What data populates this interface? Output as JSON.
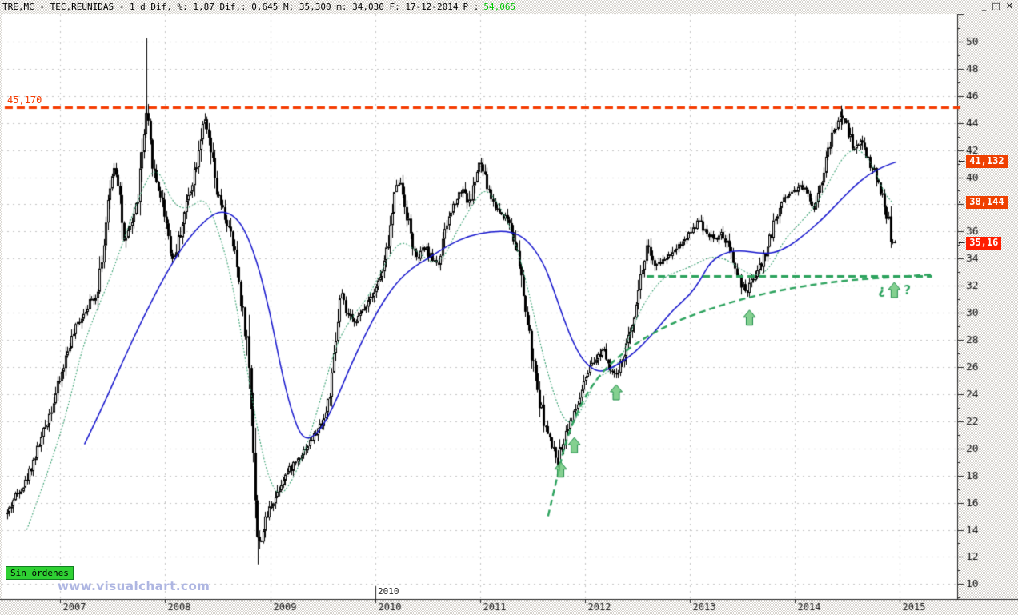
{
  "titlebar": {
    "title": "TRE,MC - TEC,REUNIDAS -  1 d Dif, %: 1,87 Dif,: 0,645 M: 35,300 m: 34,030 F: 17-12-2014",
    "last_label": "P :",
    "last_value": "54,065",
    "buttons": {
      "minimize": "_",
      "maximize": "□",
      "close": "✕"
    }
  },
  "overlays": {
    "resistance_label": "45,170",
    "no_orders_badge": "Sin órdenes",
    "watermark": "www.visualchart.com",
    "inner_year_label": "2010",
    "question_left": "¿",
    "question_right": "?",
    "marker_arrow": "←"
  },
  "price_markers": [
    {
      "label": "41,132",
      "value": 41.132,
      "color": "#ef4000"
    },
    {
      "label": "38,144",
      "value": 38.144,
      "color": "#ef4000"
    },
    {
      "label": "35,16",
      "value": 35.16,
      "color": "#ff1e00"
    }
  ],
  "colors": {
    "grid": "#c4c4c4",
    "axis": "#222222",
    "candle": "#000000",
    "resistance": "#f53b00",
    "ma_fast": "#3aa273",
    "ma_slow": "#1515cd",
    "trend": "#2da35e",
    "arrow_fill": "#6ec87d",
    "arrow_stroke": "#1f8c49"
  },
  "chart_data": {
    "type": "candlestick",
    "title": "TRE,MC - TEC,REUNIDAS - 1 d (daily candles)",
    "x_axis": {
      "min_year": 2006.44,
      "max_year": 2015.55,
      "tick_years": [
        2007,
        2008,
        2009,
        2010,
        2011,
        2012,
        2013,
        2014,
        2015
      ],
      "tick_labels": [
        "2007",
        "2008",
        "2009",
        "2010",
        "2011",
        "2012",
        "2013",
        "2014",
        "2015"
      ],
      "inner_label_year": 2010
    },
    "y_axis": {
      "min": 8.9,
      "max": 52.0,
      "gridline_step": 2,
      "minor_tick_step": 1,
      "tick_values": [
        50,
        48,
        46,
        44,
        42,
        40,
        38,
        36,
        34,
        32,
        30,
        28,
        26,
        24,
        22,
        20,
        18,
        16,
        14,
        12,
        10
      ],
      "tick_labels": [
        "50",
        "48",
        "46",
        "44",
        "42",
        "40",
        "38",
        "36",
        "34",
        "32",
        "30",
        "28",
        "26",
        "24",
        "22",
        "20",
        "18",
        "16",
        "14",
        "12",
        "10"
      ]
    },
    "resistance": {
      "value": 45.17,
      "label": "45,170",
      "span_years": [
        2006.47,
        2015.55
      ]
    },
    "support": {
      "value": 32.72,
      "span_years": [
        2012.59,
        2015.31
      ]
    },
    "last_price": 35.16,
    "price_path": [
      [
        2006.49,
        15.2
      ],
      [
        2006.57,
        16.6
      ],
      [
        2006.66,
        17.4
      ],
      [
        2006.75,
        19.3
      ],
      [
        2006.83,
        21.0
      ],
      [
        2006.92,
        23.2
      ],
      [
        2007.0,
        25.3
      ],
      [
        2007.08,
        27.6
      ],
      [
        2007.17,
        29.3
      ],
      [
        2007.26,
        30.6
      ],
      [
        2007.34,
        31.4
      ],
      [
        2007.42,
        35.5
      ],
      [
        2007.5,
        41.0
      ],
      [
        2007.55,
        40.0
      ],
      [
        2007.61,
        34.8
      ],
      [
        2007.67,
        36.5
      ],
      [
        2007.73,
        38.0
      ],
      [
        2007.79,
        42.5
      ],
      [
        2007.82,
        44.5
      ],
      [
        2007.86,
        42.0
      ],
      [
        2007.9,
        40.0
      ],
      [
        2007.96,
        38.5
      ],
      [
        2008.0,
        37.1
      ],
      [
        2008.07,
        33.8
      ],
      [
        2008.13,
        35.5
      ],
      [
        2008.2,
        38.0
      ],
      [
        2008.28,
        40.5
      ],
      [
        2008.36,
        44.3
      ],
      [
        2008.42,
        42.4
      ],
      [
        2008.49,
        38.8
      ],
      [
        2008.56,
        37.2
      ],
      [
        2008.62,
        35.8
      ],
      [
        2008.68,
        33.6
      ],
      [
        2008.73,
        30.5
      ],
      [
        2008.78,
        27.7
      ],
      [
        2008.83,
        21.8
      ],
      [
        2008.88,
        12.5
      ],
      [
        2008.93,
        14.0
      ],
      [
        2009.0,
        15.8
      ],
      [
        2009.05,
        16.5
      ],
      [
        2009.12,
        17.8
      ],
      [
        2009.2,
        18.6
      ],
      [
        2009.28,
        19.5
      ],
      [
        2009.36,
        20.3
      ],
      [
        2009.44,
        21.2
      ],
      [
        2009.52,
        22.4
      ],
      [
        2009.59,
        25.0
      ],
      [
        2009.67,
        31.5
      ],
      [
        2009.72,
        30.0
      ],
      [
        2009.78,
        29.4
      ],
      [
        2009.86,
        29.8
      ],
      [
        2009.93,
        31.0
      ],
      [
        2010.0,
        31.8
      ],
      [
        2010.08,
        33.2
      ],
      [
        2010.15,
        36.5
      ],
      [
        2010.21,
        40.2
      ],
      [
        2010.27,
        38.5
      ],
      [
        2010.33,
        36.0
      ],
      [
        2010.39,
        33.8
      ],
      [
        2010.47,
        34.8
      ],
      [
        2010.54,
        34.0
      ],
      [
        2010.61,
        33.7
      ],
      [
        2010.69,
        36.8
      ],
      [
        2010.76,
        38.3
      ],
      [
        2010.84,
        39.3
      ],
      [
        2010.89,
        37.9
      ],
      [
        2010.96,
        40.0
      ],
      [
        2011.0,
        41.2
      ],
      [
        2011.06,
        39.5
      ],
      [
        2011.13,
        38.0
      ],
      [
        2011.2,
        37.3
      ],
      [
        2011.27,
        36.9
      ],
      [
        2011.34,
        35.0
      ],
      [
        2011.41,
        31.5
      ],
      [
        2011.48,
        27.5
      ],
      [
        2011.53,
        25.0
      ],
      [
        2011.58,
        23.0
      ],
      [
        2011.64,
        21.0
      ],
      [
        2011.69,
        20.0
      ],
      [
        2011.74,
        19.2
      ],
      [
        2011.79,
        20.5
      ],
      [
        2011.84,
        21.8
      ],
      [
        2011.9,
        22.5
      ],
      [
        2011.96,
        24.0
      ],
      [
        2012.03,
        25.5
      ],
      [
        2012.1,
        26.5
      ],
      [
        2012.18,
        27.5
      ],
      [
        2012.24,
        26.0
      ],
      [
        2012.3,
        25.2
      ],
      [
        2012.37,
        26.8
      ],
      [
        2012.43,
        28.5
      ],
      [
        2012.49,
        31.0
      ],
      [
        2012.55,
        33.5
      ],
      [
        2012.6,
        35.3
      ],
      [
        2012.66,
        33.2
      ],
      [
        2012.72,
        33.8
      ],
      [
        2012.79,
        34.2
      ],
      [
        2012.86,
        34.8
      ],
      [
        2012.93,
        35.2
      ],
      [
        2013.0,
        36.0
      ],
      [
        2013.08,
        36.8
      ],
      [
        2013.16,
        36.0
      ],
      [
        2013.23,
        35.4
      ],
      [
        2013.31,
        35.8
      ],
      [
        2013.38,
        34.5
      ],
      [
        2013.45,
        33.0
      ],
      [
        2013.53,
        31.3
      ],
      [
        2013.6,
        32.5
      ],
      [
        2013.68,
        33.6
      ],
      [
        2013.75,
        35.2
      ],
      [
        2013.82,
        37.0
      ],
      [
        2013.89,
        38.5
      ],
      [
        2013.97,
        38.9
      ],
      [
        2014.04,
        39.4
      ],
      [
        2014.11,
        39.0
      ],
      [
        2014.18,
        37.8
      ],
      [
        2014.26,
        40.0
      ],
      [
        2014.33,
        42.3
      ],
      [
        2014.4,
        44.0
      ],
      [
        2014.44,
        44.6
      ],
      [
        2014.51,
        43.3
      ],
      [
        2014.57,
        42.0
      ],
      [
        2014.63,
        42.8
      ],
      [
        2014.69,
        41.5
      ],
      [
        2014.75,
        40.5
      ],
      [
        2014.81,
        39.3
      ],
      [
        2014.86,
        38.0
      ],
      [
        2014.9,
        36.3
      ],
      [
        2014.93,
        34.9
      ],
      [
        2014.955,
        35.16
      ]
    ],
    "extreme_wicks": [
      [
        2007.82,
        50.25,
        44.0
      ],
      [
        2008.88,
        11.45,
        13.5
      ],
      [
        2014.44,
        45.3,
        43.5
      ]
    ],
    "ma_fast": {
      "name": "fast moving average (green, dotted)",
      "points": [
        [
          2006.68,
          14.0
        ],
        [
          2006.8,
          16.5
        ],
        [
          2007.0,
          21.0
        ],
        [
          2007.12,
          24.5
        ],
        [
          2007.23,
          28.0
        ],
        [
          2007.5,
          33.0
        ],
        [
          2007.76,
          38.9
        ],
        [
          2007.92,
          41.0
        ],
        [
          2008.07,
          38.0
        ],
        [
          2008.22,
          37.6
        ],
        [
          2008.37,
          38.6
        ],
        [
          2008.49,
          36.5
        ],
        [
          2008.64,
          32.4
        ],
        [
          2008.79,
          25.3
        ],
        [
          2008.94,
          18.9
        ],
        [
          2009.06,
          16.5
        ],
        [
          2009.17,
          17.0
        ],
        [
          2009.33,
          19.7
        ],
        [
          2009.48,
          23.6
        ],
        [
          2009.63,
          27.7
        ],
        [
          2009.78,
          29.7
        ],
        [
          2009.94,
          31.2
        ],
        [
          2010.09,
          33.6
        ],
        [
          2010.24,
          35.4
        ],
        [
          2010.39,
          34.6
        ],
        [
          2010.55,
          33.6
        ],
        [
          2010.66,
          34.1
        ],
        [
          2010.77,
          35.9
        ],
        [
          2010.93,
          38.0
        ],
        [
          2011.04,
          39.2
        ],
        [
          2011.16,
          38.3
        ],
        [
          2011.31,
          36.0
        ],
        [
          2011.46,
          31.8
        ],
        [
          2011.61,
          26.5
        ],
        [
          2011.77,
          22.4
        ],
        [
          2011.88,
          21.7
        ],
        [
          2012.0,
          23.3
        ],
        [
          2012.11,
          25.2
        ],
        [
          2012.22,
          25.6
        ],
        [
          2012.34,
          26.4
        ],
        [
          2012.45,
          28.9
        ],
        [
          2012.6,
          31.2
        ],
        [
          2012.76,
          32.7
        ],
        [
          2012.91,
          33.1
        ],
        [
          2013.06,
          33.6
        ],
        [
          2013.21,
          34.2
        ],
        [
          2013.37,
          33.9
        ],
        [
          2013.52,
          33.0
        ],
        [
          2013.67,
          32.7
        ],
        [
          2013.79,
          33.6
        ],
        [
          2013.9,
          35.4
        ],
        [
          2014.05,
          36.6
        ],
        [
          2014.21,
          38.0
        ],
        [
          2014.36,
          40.1
        ],
        [
          2014.47,
          41.6
        ],
        [
          2014.59,
          42.2
        ],
        [
          2014.7,
          41.4
        ],
        [
          2014.78,
          40.3
        ],
        [
          2014.85,
          38.9
        ],
        [
          2014.93,
          38.14
        ]
      ]
    },
    "ma_slow": {
      "name": "slow moving average (blue)",
      "points": [
        [
          2007.23,
          20.3
        ],
        [
          2007.4,
          23.0
        ],
        [
          2007.6,
          26.5
        ],
        [
          2007.8,
          29.8
        ],
        [
          2008.0,
          32.8
        ],
        [
          2008.2,
          35.3
        ],
        [
          2008.4,
          37.0
        ],
        [
          2008.55,
          37.6
        ],
        [
          2008.72,
          36.8
        ],
        [
          2008.87,
          34.0
        ],
        [
          2009.0,
          30.0
        ],
        [
          2009.1,
          26.0
        ],
        [
          2009.2,
          22.8
        ],
        [
          2009.31,
          20.6
        ],
        [
          2009.45,
          21.0
        ],
        [
          2009.6,
          23.0
        ],
        [
          2009.75,
          25.8
        ],
        [
          2009.9,
          28.3
        ],
        [
          2010.05,
          30.5
        ],
        [
          2010.2,
          32.2
        ],
        [
          2010.35,
          33.3
        ],
        [
          2010.5,
          34.0
        ],
        [
          2010.7,
          35.0
        ],
        [
          2010.9,
          35.7
        ],
        [
          2011.1,
          36.0
        ],
        [
          2011.3,
          36.0
        ],
        [
          2011.45,
          35.4
        ],
        [
          2011.6,
          33.8
        ],
        [
          2011.7,
          31.8
        ],
        [
          2011.8,
          29.5
        ],
        [
          2011.9,
          27.6
        ],
        [
          2012.0,
          26.3
        ],
        [
          2012.13,
          25.6
        ],
        [
          2012.25,
          25.9
        ],
        [
          2012.4,
          26.6
        ],
        [
          2012.55,
          27.6
        ],
        [
          2012.7,
          28.9
        ],
        [
          2012.85,
          30.3
        ],
        [
          2013.0,
          31.3
        ],
        [
          2013.1,
          32.4
        ],
        [
          2013.2,
          33.8
        ],
        [
          2013.35,
          34.5
        ],
        [
          2013.5,
          34.6
        ],
        [
          2013.65,
          34.4
        ],
        [
          2013.8,
          34.4
        ],
        [
          2013.95,
          34.9
        ],
        [
          2014.1,
          35.8
        ],
        [
          2014.25,
          36.8
        ],
        [
          2014.4,
          38.0
        ],
        [
          2014.55,
          39.2
        ],
        [
          2014.7,
          40.2
        ],
        [
          2014.85,
          40.8
        ],
        [
          2014.97,
          41.13
        ]
      ]
    },
    "trend_curve": {
      "style": "dashed green rising curve",
      "points": [
        [
          2011.65,
          15.0
        ],
        [
          2011.73,
          17.67
        ],
        [
          2011.84,
          21.21
        ],
        [
          2012.07,
          24.87
        ],
        [
          2012.38,
          27.23
        ],
        [
          2012.76,
          29.0
        ],
        [
          2013.14,
          30.18
        ],
        [
          2013.6,
          31.24
        ],
        [
          2014.05,
          31.95
        ],
        [
          2014.51,
          32.42
        ],
        [
          2014.97,
          32.65
        ],
        [
          2015.3,
          32.83
        ]
      ]
    },
    "arrows": [
      [
        2011.77,
        19.0
      ],
      [
        2011.9,
        20.8
      ],
      [
        2012.3,
        24.7
      ],
      [
        2013.57,
        30.2
      ]
    ],
    "question_arrow": [
      2014.95,
      32.25
    ]
  }
}
